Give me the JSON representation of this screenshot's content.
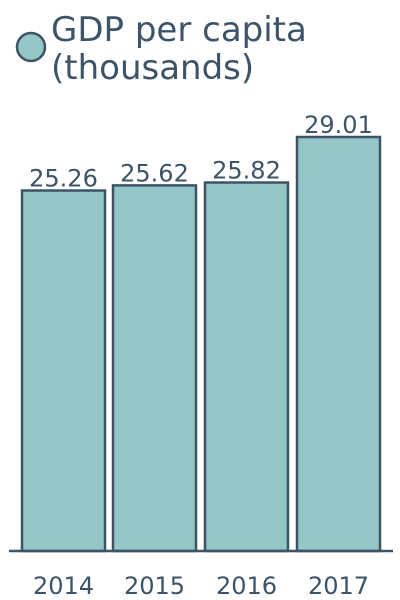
{
  "chart_data": {
    "type": "bar",
    "categories": [
      "2014",
      "2015",
      "2016",
      "2017"
    ],
    "series": [
      {
        "name": "GDP per capita (thousands)",
        "values": [
          25.26,
          25.62,
          25.82,
          29.01
        ]
      }
    ],
    "data_labels": [
      "25.26",
      "25.62",
      "25.82",
      "29.01"
    ],
    "title": "",
    "xlabel": "",
    "ylabel": "",
    "ylim": [
      0,
      29.01
    ],
    "grid": false,
    "legend": {
      "placement": "top-left",
      "line1": "GDP per capita",
      "line2": "(thousands)"
    },
    "colors": {
      "bar_fill": "#94c6c6",
      "bar_stroke": "#3d5468",
      "text": "#3d5468",
      "axis": "#3d5468"
    }
  }
}
